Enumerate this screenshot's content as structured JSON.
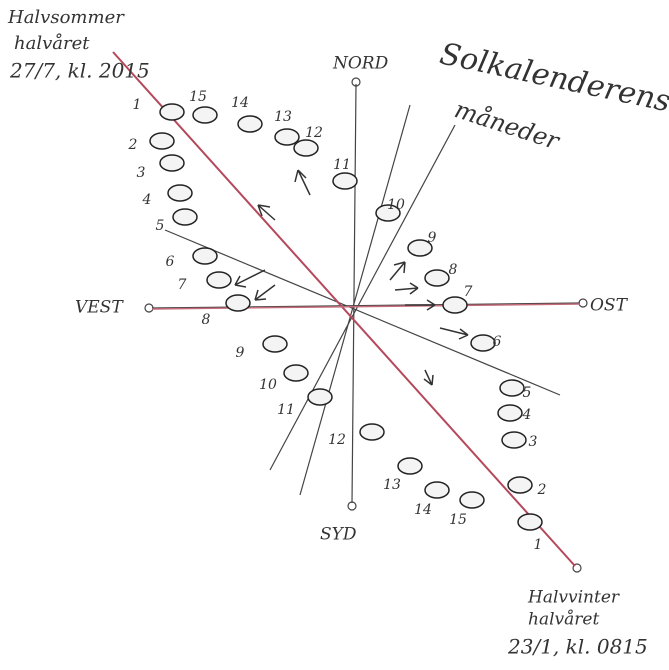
{
  "title": [
    "Solkalenderens",
    "måneder"
  ],
  "directions": {
    "north": "NORD",
    "south": "SYD",
    "west": "VEST",
    "east": "OST"
  },
  "summer_note": [
    "Halvsommer",
    "halvåret",
    "27/7, kl. 2015"
  ],
  "winter_note": [
    "Halvvinter",
    "halvåret",
    "23/1, kl. 0815"
  ],
  "upper_markers": [
    1,
    15,
    14,
    13,
    12,
    11,
    10,
    9,
    8,
    7,
    6,
    5,
    4,
    3,
    2,
    1
  ],
  "lower_markers": [
    2,
    3,
    4,
    5,
    6,
    7,
    8,
    9,
    10,
    11,
    12,
    13,
    14,
    15
  ]
}
